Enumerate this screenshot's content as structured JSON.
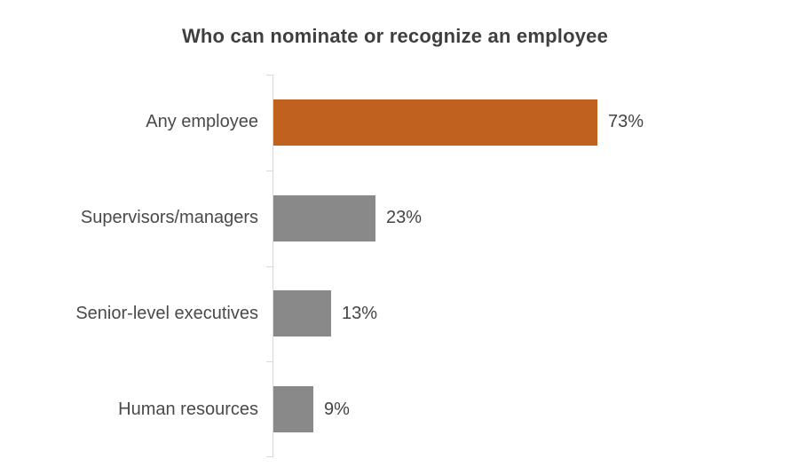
{
  "chart_data": {
    "type": "bar",
    "orientation": "horizontal",
    "title": "Who can nominate or recognize an employee",
    "categories": [
      "Any employee",
      "Supervisors/managers",
      "Senior-level executives",
      "Human resources"
    ],
    "values": [
      73,
      23,
      13,
      9
    ],
    "value_labels": [
      "73%",
      "23%",
      "13%",
      "9%"
    ],
    "unit": "%",
    "xlim": [
      0,
      100
    ],
    "grid": false,
    "legend": false,
    "highlight_index": 0,
    "axis_style": "left vertical category axis with ticks at category boundaries",
    "colors": {
      "highlight_bar": "#c0611e",
      "default_bar": "#898989",
      "axis": "#d9d9d9",
      "title_text": "#3f3f3f",
      "label_text": "#4a4a4a",
      "value_text": "#444444",
      "background": "#ffffff"
    }
  }
}
